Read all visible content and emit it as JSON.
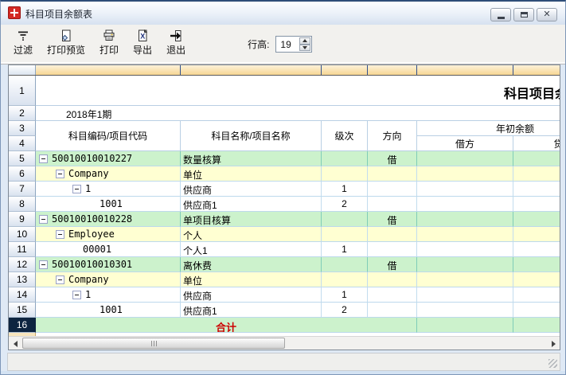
{
  "window": {
    "title": "科目项目余额表",
    "close_glyph": "✕"
  },
  "toolbar": {
    "buttons": [
      {
        "label": "过滤"
      },
      {
        "label": "打印预览"
      },
      {
        "label": "打印"
      },
      {
        "label": "导出",
        "icon_glyph": "X"
      },
      {
        "label": "退出"
      }
    ],
    "row_height_label": "行高:",
    "row_height_value": "19"
  },
  "grid": {
    "title_row": {
      "num": "1",
      "title": "科目项目余额表"
    },
    "period_row": {
      "num": "2",
      "text": "2018年1期"
    },
    "header_row_nums": [
      "3",
      "4"
    ],
    "headers": {
      "code": "科目编码/项目代码",
      "name": "科目名称/项目名称",
      "level": "级次",
      "direction": "方向",
      "opening_balance": "年初余额",
      "debit": "借方",
      "credit": "贷方"
    },
    "rows": [
      {
        "num": "5",
        "indent": 0,
        "box": true,
        "code": "50010010010227",
        "name": "数量核算",
        "level": "",
        "direction": "借",
        "debit": "",
        "credit": "",
        "bg": "green"
      },
      {
        "num": "6",
        "indent": 1,
        "box": true,
        "code": "Company",
        "name": "单位",
        "level": "",
        "direction": "",
        "debit": "",
        "credit": "",
        "bg": "yellow"
      },
      {
        "num": "7",
        "indent": 2,
        "box": true,
        "code": "1",
        "name": "供应商",
        "level": "1",
        "direction": "",
        "debit": "",
        "credit": "",
        "bg": "white"
      },
      {
        "num": "8",
        "indent": 3,
        "box": false,
        "code": "1001",
        "name": "供应商1",
        "level": "2",
        "direction": "",
        "debit": "",
        "credit": "",
        "bg": "white"
      },
      {
        "num": "9",
        "indent": 0,
        "box": true,
        "code": "50010010010228",
        "name": "单项目核算",
        "level": "",
        "direction": "借",
        "debit": "",
        "credit": "",
        "bg": "green"
      },
      {
        "num": "10",
        "indent": 1,
        "box": true,
        "code": "Employee",
        "name": "个人",
        "level": "",
        "direction": "",
        "debit": "",
        "credit": "",
        "bg": "yellow"
      },
      {
        "num": "11",
        "indent": 2,
        "box": false,
        "code": "00001",
        "name": "个人1",
        "level": "1",
        "direction": "",
        "debit": "",
        "credit": "",
        "bg": "white"
      },
      {
        "num": "12",
        "indent": 0,
        "box": true,
        "code": "50010010010301",
        "name": "离休费",
        "level": "",
        "direction": "借",
        "debit": "",
        "credit": "",
        "bg": "green"
      },
      {
        "num": "13",
        "indent": 1,
        "box": true,
        "code": "Company",
        "name": "单位",
        "level": "",
        "direction": "",
        "debit": "",
        "credit": "",
        "bg": "yellow"
      },
      {
        "num": "14",
        "indent": 2,
        "box": true,
        "code": "1",
        "name": "供应商",
        "level": "1",
        "direction": "",
        "debit": "",
        "credit": "",
        "bg": "white"
      },
      {
        "num": "15",
        "indent": 3,
        "box": false,
        "code": "1001",
        "name": "供应商1",
        "level": "2",
        "direction": "",
        "debit": "",
        "credit": "",
        "bg": "white"
      }
    ],
    "total_row": {
      "num": "16",
      "label": "合计",
      "debit": "",
      "credit": ""
    }
  },
  "colors": {
    "row_green": "#ccf2cc",
    "row_yellow": "#ffffd2",
    "header_orange": "#fbe2ac",
    "total_red": "#cc0000",
    "selected_row_header": "#0d2440"
  }
}
